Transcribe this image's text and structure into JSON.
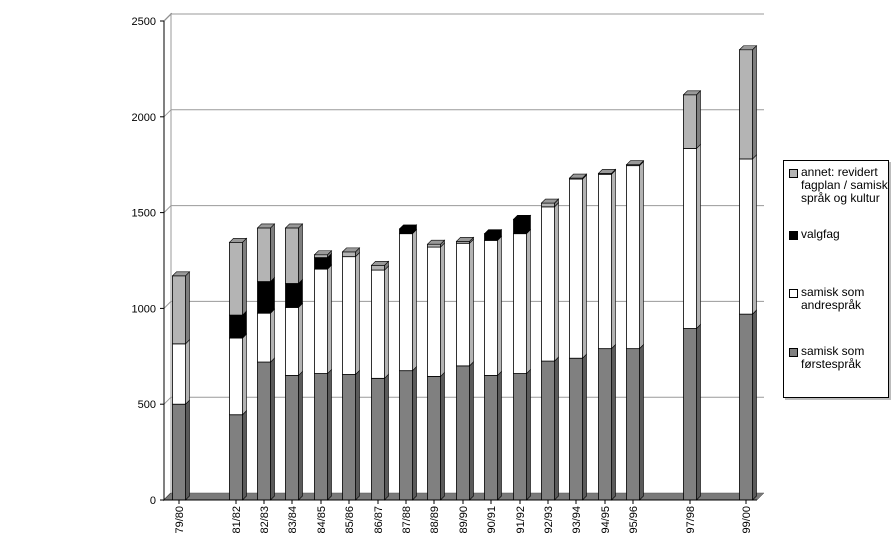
{
  "chart_data": {
    "type": "bar",
    "stacked": true,
    "categories": [
      "79/80",
      "81/82",
      "82/83",
      "83/84",
      "84/85",
      "85/86",
      "86/87",
      "87/88",
      "88/89",
      "89/90",
      "90/91",
      "91/92",
      "92/93",
      "93/94",
      "94/95",
      "95/96",
      "97/98",
      "99/00"
    ],
    "series": [
      {
        "name": "samisk som førstespråk",
        "color": "#808080",
        "values": [
          500,
          445,
          720,
          650,
          660,
          655,
          635,
          675,
          645,
          700,
          650,
          660,
          725,
          740,
          790,
          790,
          895,
          970
        ]
      },
      {
        "name": "samisk som andrespråk",
        "color": "#ffffff",
        "values": [
          315,
          400,
          255,
          355,
          545,
          615,
          565,
          715,
          675,
          640,
          705,
          730,
          805,
          935,
          910,
          955,
          940,
          810
        ]
      },
      {
        "name": "valgfag",
        "color": "#000000",
        "values": [
          0,
          120,
          165,
          125,
          60,
          0,
          0,
          25,
          0,
          0,
          35,
          75,
          0,
          0,
          0,
          0,
          0,
          0
        ]
      },
      {
        "name": "annet: revidert fagplan / samisk språk og kultur",
        "color": "#b4b4b4",
        "values": [
          355,
          380,
          280,
          290,
          15,
          25,
          25,
          0,
          15,
          10,
          0,
          0,
          20,
          5,
          5,
          5,
          280,
          570
        ]
      }
    ],
    "yticks": [
      0,
      500,
      1000,
      1500,
      2000,
      2500
    ],
    "ylim": [
      0,
      2500
    ],
    "grid": true,
    "legend": "right",
    "title": "",
    "xlabel": "",
    "ylabel": ""
  },
  "legend": {
    "items": [
      {
        "label": "annet: revidert fagplan / samisk språk og kultur",
        "color": "#b4b4b4"
      },
      {
        "label": "valgfag",
        "color": "#000000"
      },
      {
        "label": "samisk som andrespråk",
        "color": "#ffffff"
      },
      {
        "label": "samisk som førstespråk",
        "color": "#808080"
      }
    ]
  }
}
